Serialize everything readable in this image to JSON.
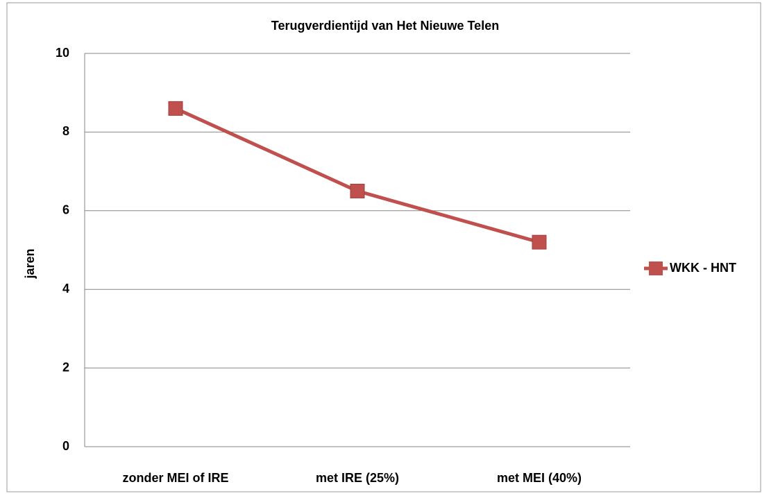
{
  "chart_data": {
    "type": "line",
    "title": "Terugverdientijd van Het Nieuwe Telen",
    "y_label": "jaren",
    "categories": [
      "zonder MEI of IRE",
      "met IRE (25%)",
      "met MEI (40%)"
    ],
    "series": [
      {
        "name": "WKK - HNT",
        "color": "#c0504d",
        "values": [
          8.6,
          6.5,
          5.2
        ]
      }
    ],
    "ylim": [
      0,
      10
    ],
    "yticks": [
      0,
      2,
      4,
      6,
      8,
      10
    ],
    "grid": true,
    "legend": "right"
  }
}
